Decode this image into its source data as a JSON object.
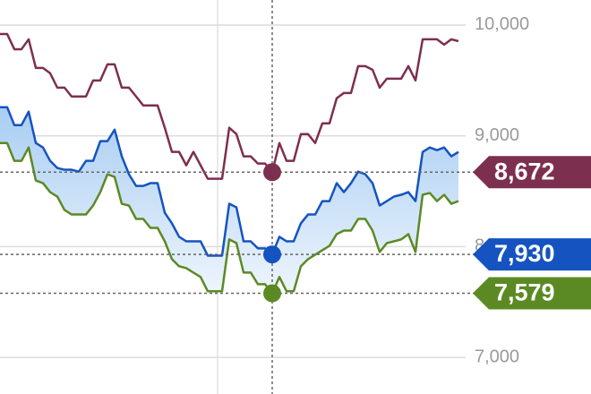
{
  "chart_data": {
    "type": "line",
    "ylim": [
      6670,
      10226
    ],
    "yticks": [
      {
        "value": 7000,
        "label": "7,000"
      },
      {
        "value": 8000,
        "label": "8,000"
      },
      {
        "value": 9000,
        "label": "9,000"
      },
      {
        "value": 10000,
        "label": "10,000"
      }
    ],
    "grid": true,
    "crosshair_index": 38,
    "series": [
      {
        "color": "#7d2f4f",
        "marker_label": "8,672",
        "values": [
          9919,
          9919,
          9782,
          9782,
          9871,
          9613,
          9613,
          9565,
          9435,
          9435,
          9355,
          9355,
          9355,
          9500,
          9500,
          9645,
          9645,
          9435,
          9435,
          9355,
          9274,
          9274,
          9274,
          9073,
          8855,
          8855,
          8734,
          8855,
          8734,
          8613,
          8613,
          8613,
          9073,
          9016,
          8815,
          8815,
          8750,
          8750,
          8672,
          8935,
          8774,
          8774,
          9016,
          9016,
          8935,
          9113,
          9113,
          9339,
          9387,
          9387,
          9629,
          9629,
          9597,
          9435,
          9516,
          9516,
          9516,
          9629,
          9500,
          9871,
          9871,
          9871,
          9823,
          9871,
          9855
        ]
      },
      {
        "color": "#1553c0",
        "marker_label": "7,930",
        "values": [
          9258,
          9258,
          9097,
          9097,
          9218,
          8935,
          8895,
          8774,
          8710,
          8694,
          8694,
          8677,
          8774,
          8774,
          8952,
          8952,
          9056,
          8815,
          8653,
          8548,
          8548,
          8573,
          8573,
          8306,
          8210,
          8089,
          8048,
          8048,
          8048,
          7919,
          7919,
          7919,
          8387,
          8355,
          8048,
          8048,
          7984,
          7984,
          7930,
          8089,
          8048,
          8048,
          8210,
          8290,
          8290,
          8411,
          8411,
          8573,
          8492,
          8573,
          8677,
          8653,
          8573,
          8371,
          8411,
          8452,
          8468,
          8492,
          8411,
          8855,
          8895,
          8871,
          8895,
          8815,
          8855
        ]
      },
      {
        "color": "#5b8a24",
        "marker_label": "7,579",
        "values": [
          8935,
          8935,
          8774,
          8774,
          8895,
          8597,
          8573,
          8492,
          8452,
          8331,
          8290,
          8290,
          8290,
          8371,
          8492,
          8653,
          8629,
          8387,
          8371,
          8250,
          8250,
          8169,
          8169,
          8048,
          7887,
          7823,
          7806,
          7766,
          7726,
          7597,
          7597,
          7597,
          8065,
          8032,
          7766,
          7766,
          7661,
          7661,
          7579,
          7726,
          7597,
          7597,
          7823,
          7887,
          7927,
          7968,
          8008,
          8113,
          8145,
          8145,
          8250,
          8250,
          8145,
          7952,
          8032,
          8048,
          8065,
          8113,
          7952,
          8468,
          8484,
          8411,
          8468,
          8387,
          8411
        ]
      }
    ]
  }
}
